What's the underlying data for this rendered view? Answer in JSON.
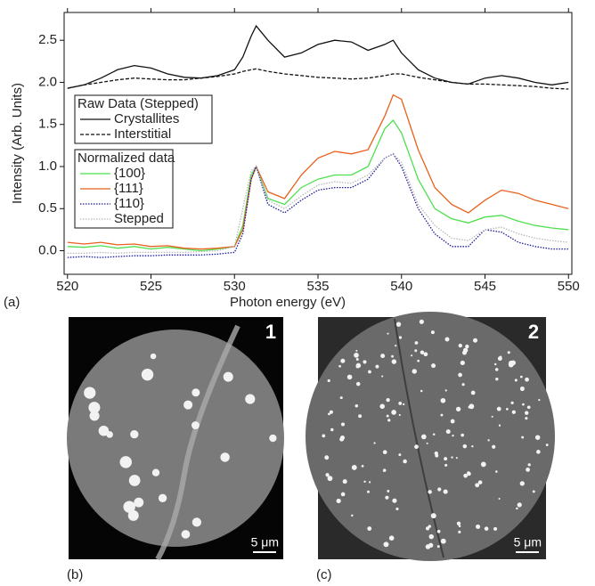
{
  "chart_data": {
    "type": "line",
    "x_label": "Photon energy (eV)",
    "y_label": "Intensity (Arb. Units)",
    "panel_label": "(a)",
    "x": [
      520,
      521,
      522,
      523,
      524,
      525,
      526,
      527,
      528,
      529,
      530,
      530.5,
      531,
      531.3,
      532,
      533,
      534,
      535,
      536,
      537,
      538,
      539,
      539.5,
      540,
      541,
      542,
      543,
      544,
      545,
      546,
      547,
      548,
      549,
      550
    ],
    "xlim": [
      519.8,
      550.2
    ],
    "xticks": [
      520,
      525,
      530,
      535,
      540,
      545,
      550
    ],
    "ylim": [
      -0.28,
      2.83
    ],
    "yticks": [
      {
        "value": 0,
        "label": "0.0"
      },
      0.5,
      {
        "value": 1,
        "label": "1.0"
      },
      1.5,
      {
        "value": 2,
        "label": "2.0"
      },
      2.5
    ],
    "series_groups": [
      {
        "title": "Raw Data (Stepped)",
        "series": [
          {
            "name": "Crystallites",
            "color": "#111111",
            "dash": "solid",
            "values": [
              1.93,
              1.97,
              2.05,
              2.15,
              2.2,
              2.17,
              2.1,
              2.06,
              2.05,
              2.08,
              2.15,
              2.3,
              2.55,
              2.67,
              2.5,
              2.3,
              2.35,
              2.45,
              2.5,
              2.48,
              2.38,
              2.45,
              2.5,
              2.35,
              2.15,
              2.05,
              2.0,
              1.98,
              2.05,
              2.08,
              2.05,
              2.0,
              1.97,
              2.0
            ]
          },
          {
            "name": "Interstitial",
            "color": "#111111",
            "dash": "dashed",
            "values": [
              1.93,
              1.97,
              2.0,
              2.03,
              2.05,
              2.04,
              2.03,
              2.03,
              2.05,
              2.07,
              2.1,
              2.13,
              2.15,
              2.16,
              2.13,
              2.1,
              2.08,
              2.06,
              2.05,
              2.04,
              2.05,
              2.08,
              2.1,
              2.1,
              2.06,
              2.03,
              2.0,
              1.98,
              1.98,
              1.97,
              1.96,
              1.95,
              1.93,
              1.92
            ]
          }
        ]
      },
      {
        "title": "Normalized data",
        "series": [
          {
            "name": "{100}",
            "color": "#4ee04e",
            "dash": "solid",
            "values": [
              0.05,
              0.04,
              0.06,
              0.03,
              0.05,
              0.02,
              0.04,
              0.02,
              0.0,
              0.02,
              0.05,
              0.3,
              0.9,
              1.0,
              0.62,
              0.55,
              0.75,
              0.85,
              0.9,
              0.9,
              1.0,
              1.45,
              1.55,
              1.4,
              0.85,
              0.5,
              0.38,
              0.33,
              0.4,
              0.42,
              0.35,
              0.3,
              0.27,
              0.25
            ]
          },
          {
            "name": "{111}",
            "color": "#e8601c",
            "dash": "solid",
            "values": [
              0.1,
              0.08,
              0.1,
              0.07,
              0.08,
              0.05,
              0.06,
              0.03,
              0.02,
              0.03,
              0.05,
              0.25,
              0.85,
              1.0,
              0.7,
              0.62,
              0.9,
              1.1,
              1.18,
              1.15,
              1.2,
              1.6,
              1.85,
              1.8,
              1.2,
              0.75,
              0.55,
              0.45,
              0.6,
              0.72,
              0.68,
              0.6,
              0.55,
              0.5
            ]
          },
          {
            "name": "{110}",
            "color": "#1a1a9c",
            "dash": "dotted",
            "values": [
              -0.08,
              -0.07,
              -0.08,
              -0.07,
              -0.06,
              -0.06,
              -0.05,
              -0.05,
              -0.05,
              -0.04,
              -0.02,
              0.2,
              0.85,
              1.0,
              0.55,
              0.45,
              0.6,
              0.72,
              0.75,
              0.75,
              0.85,
              1.1,
              1.15,
              1.0,
              0.5,
              0.2,
              0.05,
              0.05,
              0.25,
              0.22,
              0.1,
              0.05,
              0.02,
              0.02
            ]
          },
          {
            "name": "Stepped",
            "color": "#b8b8b8",
            "dash": "dotted",
            "values": [
              -0.03,
              -0.03,
              -0.02,
              -0.03,
              -0.02,
              -0.02,
              -0.02,
              -0.02,
              -0.01,
              0.0,
              0.05,
              0.5,
              0.95,
              1.0,
              0.6,
              0.5,
              0.65,
              0.78,
              0.82,
              0.8,
              0.9,
              1.1,
              1.15,
              1.05,
              0.55,
              0.3,
              0.15,
              0.12,
              0.25,
              0.28,
              0.2,
              0.15,
              0.12,
              0.1
            ]
          }
        ]
      }
    ]
  },
  "images": [
    {
      "panel": "(b)",
      "number": "1",
      "scale": "5 μm"
    },
    {
      "panel": "(c)",
      "number": "2",
      "scale": "5 μm"
    }
  ]
}
